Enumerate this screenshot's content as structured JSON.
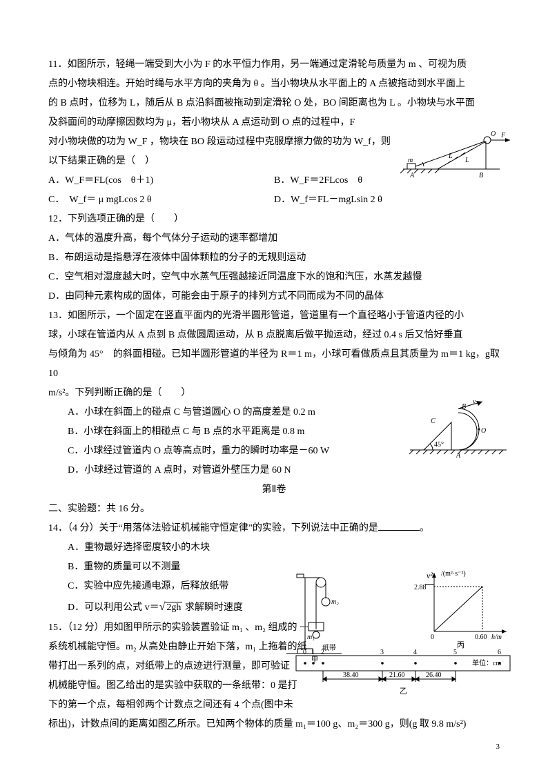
{
  "q11": {
    "stem1": "11．如图所示，轻绳一端受到大小为 F 的水平恒力作用，另一端通过定滑轮与质量为 m 、可视为质",
    "stem2": "点的小物块相连。开始时绳与水平方向的夹角为 θ 。当小物块从水平面上的 A 点被拖动到水平面上",
    "stem3": "的 B 点时，位移为 L，随后从 B 点沿斜面被拖动到定滑轮 O 处，BO 间距离也为 L 。小物块与水平面",
    "stem4": "及斜面间的动摩擦因数均为 μ，若小物块从 A 点运动到 O 点的过程中，F",
    "stem5": "对小物块做的功为 W_F ，物块在 BO 段运动过程中克服摩擦力做的功为 W_f，则",
    "stem6": "以下结果正确的是（　）",
    "optA": "A．W_F＝FL(cos　θ＋1)",
    "optB": "B．W_F＝2FLcos　θ",
    "optC": "C．　W_f＝ μ mgLcos 2 θ",
    "optD": "D．W_f＝FL－mgLsin 2 θ",
    "fig": {
      "L": "L",
      "A": "A",
      "B": "B",
      "F": "F",
      "m": "m",
      "O": "O"
    }
  },
  "q12": {
    "stem": "12．下列选项正确的是（　　）",
    "A": "A．气体的温度升高，每个气体分子运动的速率都增加",
    "B": "B．布朗运动是指悬浮在液体中固体颗粒的分子的无规则运动",
    "C": "C．空气相对湿度越大时，空气中水蒸气压强越接近同温度下水的饱和汽压，水蒸发越慢",
    "D": "D．由同种元素构成的固体，可能会由于原子的排列方式不同而成为不同的晶体"
  },
  "q13": {
    "stem1": "13．如图所示，一个固定在竖直平面内的光滑半圆形管道，管道里有一个直径略小于管道内径的小",
    "stem2": "球，小球在管道内从 A 点到 B 点做圆周运动，从 B 点脱离后做平抛运动，经过 0.4 s 后又恰好垂直",
    "stem3": "与倾角为 45°　的斜面相碰。已知半圆形管道的半径为 R＝1 m，小球可看做质点且其质量为 m＝1 kg，g取 10",
    "stem4": "m/s²。下列判断正确的是（　　）",
    "A": "A．小球在斜面上的碰点 C 与管道圆心 O 的高度差是 0.2 m",
    "B": "B．小球在斜面上的相碰点 C 与 B 点的水平距离是 0.8 m",
    "C": "C．小球经过管道内 O 点等高点时，重力的瞬时功率是－60 W",
    "D": "D．小球经过管道的 A 点时，对管道外壁压力是 60 N",
    "fig": {
      "A": "A",
      "B": "B",
      "C": "C",
      "O": "O",
      "v": "v",
      "ang": "45°"
    }
  },
  "part2": "第Ⅱ卷",
  "section2": "二、实验题：共 16 分。",
  "q14": {
    "stem": "14．（4 分）关于“用落体法验证机械能守恒定律”的实验，下列说法中正确的是",
    "end": "。",
    "A": "A．重物最好选择密度较小的木块",
    "B": "B．重物的质量可以不测量",
    "C": "C．实验中应先接通电源，后释放纸带",
    "D": "D．可以利用公式 v＝",
    "D2": " 求解瞬时速度",
    "sqrt": "2gh"
  },
  "q15": {
    "s1": "15．（12 分）用如图甲所示的实验装置验证 m₁ 、m₂ 组成的",
    "s2": "系统机械能守恒。m₂ 从高处由静止开始下落，m₁ 上拖着的纸",
    "s3": "带打出一系列的点，对纸带上的点迹进行测量，即可验证",
    "s4": "机械能守恒。图乙给出的是实验中获取的一条纸带：0 是打",
    "s5": "下的第一个点，每相邻两个计数点之间还有 4 个点(图中未",
    "s6": "标出)，计数点间的距离如图乙所示。已知两个物体的质量 m₁＝100 g、m₂＝300 g，则(g 取 9.8 m/s²)",
    "figJia": {
      "m1": "m₁",
      "m2": "m₂",
      "tape": "纸带",
      "label": "甲"
    },
    "figBing": {
      "ytick": "2.88",
      "xtick": "0.60",
      "ylabel": "/(m²·s⁻²)",
      "ynum": "v²",
      "yden": "2",
      "xlabel": "h/m",
      "label": "丙"
    },
    "figYi": {
      "pts": [
        "0",
        "1",
        "2",
        "3",
        "4",
        "5",
        "6"
      ],
      "d1": "38.40",
      "d2": "21.60",
      "d3": "26.40",
      "unit": "单位：cm",
      "label": "乙"
    }
  },
  "colors": {
    "text": "#000000",
    "bg": "#ffffff",
    "line": "#000000"
  },
  "page": "3"
}
